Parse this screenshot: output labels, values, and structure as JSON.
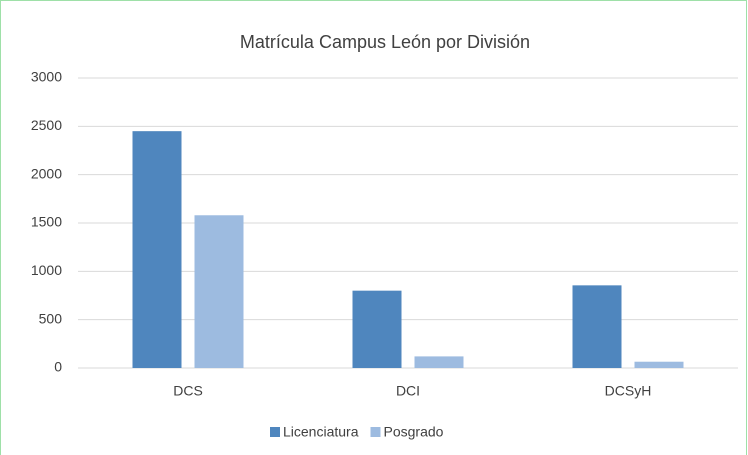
{
  "chart_data": {
    "type": "bar",
    "title": "Matrícula Campus León por División",
    "categories": [
      "DCS",
      "DCI",
      "DCSyH"
    ],
    "series": [
      {
        "name": "Licenciatura",
        "color": "#4f86be",
        "values": [
          2450,
          800,
          855
        ]
      },
      {
        "name": "Posgrado",
        "color": "#9dbbe0",
        "values": [
          1580,
          120,
          65
        ]
      }
    ],
    "ylim": [
      0,
      3000
    ],
    "yticks": [
      0,
      500,
      1000,
      1500,
      2000,
      2500,
      3000
    ],
    "grid": true,
    "legend": "bottom"
  }
}
